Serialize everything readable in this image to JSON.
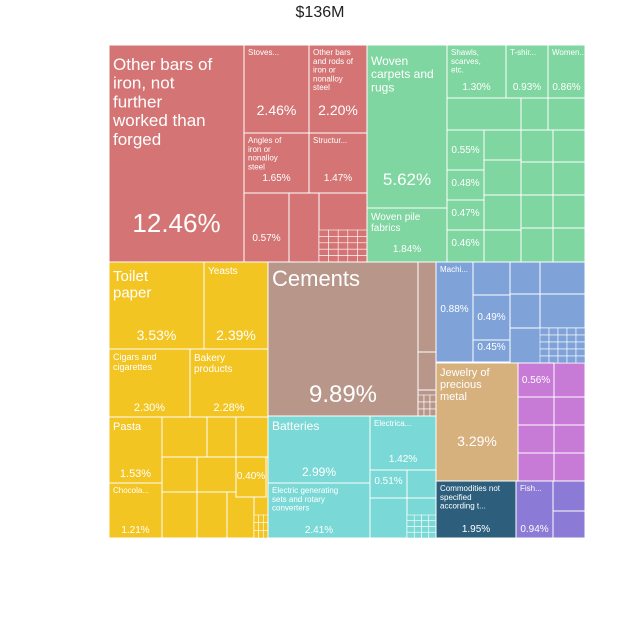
{
  "chart_data": {
    "type": "treemap",
    "title": "$136M",
    "colors": {
      "metals": "#d47474",
      "textiles": "#7fd6a0",
      "foodstuffs": "#f2c523",
      "minerals": "#b8968a",
      "machinery": "#7ad9d6",
      "chemicals": "#7fa2d9",
      "precious_metals": "#d6b07d",
      "misc": "#c77ad6",
      "other": "#2d5f7d",
      "animal": "#8b7ad6"
    },
    "items": [
      {
        "label": "Other bars of iron, not further worked than forged",
        "value": "12.46%",
        "group": "metals"
      },
      {
        "label": "Stoves...",
        "value": "2.46%",
        "group": "metals"
      },
      {
        "label": "Other bars and rods of iron or nonalloy steel",
        "value": "2.20%",
        "group": "metals"
      },
      {
        "label": "Angles of iron or nonalloy steel",
        "value": "1.65%",
        "group": "metals"
      },
      {
        "label": "Structur...",
        "value": "1.47%",
        "group": "metals"
      },
      {
        "label": "",
        "value": "0.57%",
        "group": "metals"
      },
      {
        "label": "Woven carpets and rugs",
        "value": "5.62%",
        "group": "textiles"
      },
      {
        "label": "Woven pile fabrics",
        "value": "1.84%",
        "group": "textiles"
      },
      {
        "label": "Shawls, scarves, etc.",
        "value": "1.30%",
        "group": "textiles"
      },
      {
        "label": "T-shir...",
        "value": "0.93%",
        "group": "textiles"
      },
      {
        "label": "Women...",
        "value": "0.86%",
        "group": "textiles"
      },
      {
        "label": "",
        "value": "0.55%",
        "group": "textiles"
      },
      {
        "label": "",
        "value": "0.48%",
        "group": "textiles"
      },
      {
        "label": "",
        "value": "0.47%",
        "group": "textiles"
      },
      {
        "label": "",
        "value": "0.46%",
        "group": "textiles"
      },
      {
        "label": "Toilet paper",
        "value": "3.53%",
        "group": "foodstuffs"
      },
      {
        "label": "Yeasts",
        "value": "2.39%",
        "group": "foodstuffs"
      },
      {
        "label": "Cigars and cigarettes",
        "value": "2.30%",
        "group": "foodstuffs"
      },
      {
        "label": "Bakery products",
        "value": "2.28%",
        "group": "foodstuffs"
      },
      {
        "label": "Pasta",
        "value": "1.53%",
        "group": "foodstuffs"
      },
      {
        "label": "",
        "value": "0.40%",
        "group": "foodstuffs"
      },
      {
        "label": "Chocola...",
        "value": "1.21%",
        "group": "foodstuffs"
      },
      {
        "label": "Cements",
        "value": "9.89%",
        "group": "minerals"
      },
      {
        "label": "Batteries",
        "value": "2.99%",
        "group": "machinery"
      },
      {
        "label": "Electrica...",
        "value": "1.42%",
        "group": "machinery"
      },
      {
        "label": "",
        "value": "0.51%",
        "group": "machinery"
      },
      {
        "label": "Electric generating sets and rotary converters",
        "value": "2.41%",
        "group": "machinery"
      },
      {
        "label": "Machi...",
        "value": "0.88%",
        "group": "chemicals"
      },
      {
        "label": "",
        "value": "0.49%",
        "group": "chemicals"
      },
      {
        "label": "",
        "value": "0.45%",
        "group": "chemicals"
      },
      {
        "label": "Jewelry of precious metal",
        "value": "3.29%",
        "group": "precious_metals"
      },
      {
        "label": "",
        "value": "0.56%",
        "group": "misc"
      },
      {
        "label": "Commodities not specified according t...",
        "value": "1.95%",
        "group": "other"
      },
      {
        "label": "Fish...",
        "value": "0.94%",
        "group": "animal"
      }
    ]
  }
}
